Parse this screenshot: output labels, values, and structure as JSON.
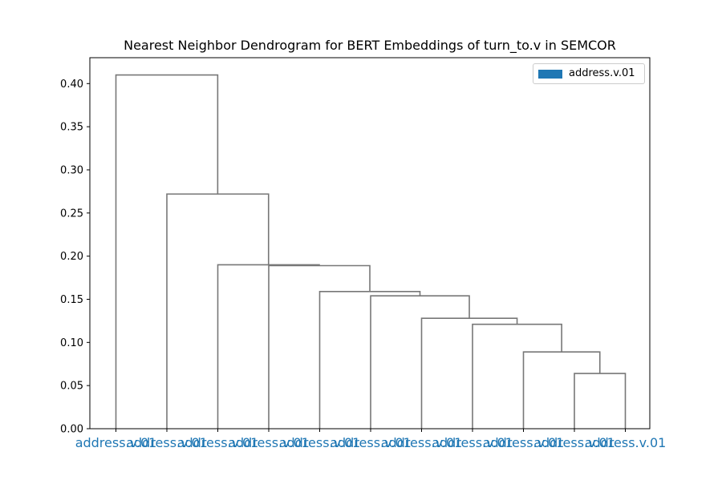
{
  "chart_data": {
    "type": "dendrogram",
    "title": "Nearest Neighbor Dendrogram for BERT Embeddings of turn_to.v in SEMCOR",
    "xlabel": "",
    "ylabel": "",
    "ylim": [
      0,
      0.43
    ],
    "yticks": [
      "0.00",
      "0.05",
      "0.10",
      "0.15",
      "0.20",
      "0.25",
      "0.30",
      "0.35",
      "0.40"
    ],
    "leaves": [
      "address.v.01",
      "address.v.01",
      "address.v.01",
      "address.v.01",
      "address.v.01",
      "address.v.01",
      "address.v.01",
      "address.v.01",
      "address.v.01",
      "address.v.01",
      "address.v.01"
    ],
    "leaf_color": "#1f77b4",
    "link_color": "#777777",
    "merges": [
      {
        "x": [
          9,
          10
        ],
        "y": 0.064
      },
      {
        "x": [
          8,
          9.5
        ],
        "y": 0.089
      },
      {
        "x": [
          7,
          8.75
        ],
        "y": 0.121
      },
      {
        "x": [
          6,
          7.875
        ],
        "y": 0.128
      },
      {
        "x": [
          5,
          6.9375
        ],
        "y": 0.154
      },
      {
        "x": [
          4,
          5.96875
        ],
        "y": 0.159
      },
      {
        "x": [
          3,
          4.984375
        ],
        "y": 0.189
      },
      {
        "x": [
          2,
          3.9921875
        ],
        "y": 0.19
      },
      {
        "x": [
          1,
          2.99609375
        ],
        "y": 0.272
      },
      {
        "x": [
          0,
          1.998046875
        ],
        "y": 0.41
      }
    ],
    "legend": [
      {
        "name": "address.v.01",
        "color": "#1f77b4"
      }
    ],
    "legend_position": "upper right",
    "grid": false
  }
}
